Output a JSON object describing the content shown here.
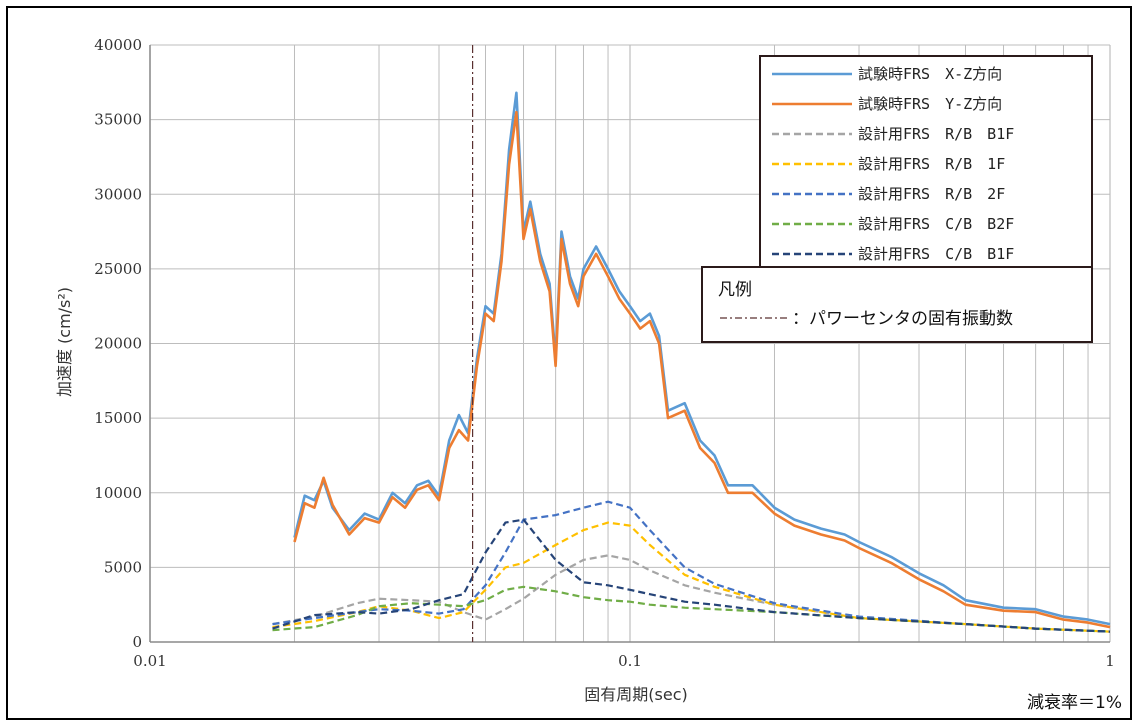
{
  "chart_data": {
    "type": "line",
    "xlabel": "固有周期(sec)",
    "ylabel": "加速度 (cm/s²)",
    "x_scale": "log",
    "xlim": [
      0.01,
      1
    ],
    "ylim": [
      0,
      40000
    ],
    "x_ticks": [
      "0.01",
      "0.1",
      "1"
    ],
    "y_ticks": [
      "0",
      "5000",
      "10000",
      "15000",
      "20000",
      "25000",
      "30000",
      "35000",
      "40000"
    ],
    "grid": true,
    "legend_position": "top-right",
    "damping_note": "減衰率＝1%",
    "vertical_marker": {
      "x": 0.047,
      "legend_title": "凡例",
      "legend_label": "：パワーセンタの固有振動数"
    },
    "series": [
      {
        "name": "試験時FRS　X-Z方向",
        "color": "#5b9bd5",
        "style": "solid",
        "x": [
          0.02,
          0.021,
          0.022,
          0.023,
          0.024,
          0.026,
          0.028,
          0.03,
          0.032,
          0.034,
          0.036,
          0.038,
          0.04,
          0.042,
          0.044,
          0.046,
          0.048,
          0.05,
          0.052,
          0.054,
          0.056,
          0.058,
          0.06,
          0.062,
          0.065,
          0.068,
          0.07,
          0.072,
          0.075,
          0.078,
          0.08,
          0.085,
          0.09,
          0.095,
          0.1,
          0.105,
          0.11,
          0.115,
          0.12,
          0.13,
          0.14,
          0.15,
          0.16,
          0.18,
          0.2,
          0.22,
          0.25,
          0.28,
          0.3,
          0.35,
          0.4,
          0.45,
          0.5,
          0.6,
          0.7,
          0.8,
          0.9,
          1.0
        ],
        "y": [
          7000,
          9800,
          9500,
          10800,
          9000,
          7500,
          8600,
          8200,
          10000,
          9300,
          10500,
          10800,
          9800,
          13500,
          15200,
          14000,
          19000,
          22500,
          22000,
          26000,
          33000,
          36800,
          27500,
          29500,
          26000,
          24000,
          19000,
          27500,
          24500,
          23000,
          25000,
          26500,
          25000,
          23500,
          22500,
          21500,
          22000,
          20500,
          15500,
          16000,
          13500,
          12500,
          10500,
          10500,
          9000,
          8200,
          7600,
          7200,
          6700,
          5700,
          4600,
          3800,
          2800,
          2300,
          2200,
          1700,
          1500,
          1200
        ]
      },
      {
        "name": "試験時FRS　Y-Z方向",
        "color": "#ed7d31",
        "style": "solid",
        "x": [
          0.02,
          0.021,
          0.022,
          0.023,
          0.024,
          0.026,
          0.028,
          0.03,
          0.032,
          0.034,
          0.036,
          0.038,
          0.04,
          0.042,
          0.044,
          0.046,
          0.048,
          0.05,
          0.052,
          0.054,
          0.056,
          0.058,
          0.06,
          0.062,
          0.065,
          0.068,
          0.07,
          0.072,
          0.075,
          0.078,
          0.08,
          0.085,
          0.09,
          0.095,
          0.1,
          0.105,
          0.11,
          0.115,
          0.12,
          0.13,
          0.14,
          0.15,
          0.16,
          0.18,
          0.2,
          0.22,
          0.25,
          0.28,
          0.3,
          0.35,
          0.4,
          0.45,
          0.5,
          0.6,
          0.7,
          0.8,
          0.9,
          1.0
        ],
        "y": [
          6700,
          9300,
          9000,
          11000,
          9200,
          7200,
          8300,
          8000,
          9700,
          9000,
          10200,
          10500,
          9500,
          13000,
          14200,
          13500,
          18500,
          22000,
          21500,
          25500,
          32000,
          35500,
          27000,
          29000,
          25500,
          23500,
          18500,
          27000,
          24000,
          22500,
          24500,
          26000,
          24500,
          23000,
          22000,
          21000,
          21500,
          20000,
          15000,
          15500,
          13000,
          12000,
          10000,
          10000,
          8600,
          7800,
          7200,
          6800,
          6300,
          5300,
          4200,
          3400,
          2500,
          2100,
          2000,
          1500,
          1300,
          1000
        ]
      },
      {
        "name": "設計用FRS　R/B　B1F",
        "color": "#a5a5a5",
        "style": "dashed",
        "x": [
          0.018,
          0.022,
          0.027,
          0.03,
          0.035,
          0.04,
          0.045,
          0.05,
          0.055,
          0.06,
          0.07,
          0.08,
          0.09,
          0.1,
          0.11,
          0.13,
          0.15,
          0.2,
          0.3,
          0.5,
          0.7,
          1.0
        ],
        "y": [
          1200,
          1700,
          2600,
          2900,
          2800,
          2700,
          2000,
          1500,
          2200,
          2900,
          4500,
          5500,
          5800,
          5500,
          4800,
          3800,
          3300,
          2500,
          1600,
          1200,
          900,
          700
        ]
      },
      {
        "name": "設計用FRS　R/B　1F",
        "color": "#ffc000",
        "style": "dashed",
        "x": [
          0.018,
          0.022,
          0.027,
          0.03,
          0.035,
          0.04,
          0.045,
          0.05,
          0.055,
          0.06,
          0.07,
          0.08,
          0.09,
          0.1,
          0.11,
          0.13,
          0.15,
          0.2,
          0.3,
          0.5,
          0.7,
          1.0
        ],
        "y": [
          1000,
          1400,
          2000,
          2400,
          2100,
          1600,
          2000,
          3500,
          5000,
          5300,
          6500,
          7500,
          8000,
          7800,
          6500,
          4500,
          3700,
          2500,
          1600,
          1200,
          900,
          700
        ]
      },
      {
        "name": "設計用FRS　R/B　2F",
        "color": "#4472c4",
        "style": "dashed",
        "x": [
          0.018,
          0.022,
          0.027,
          0.03,
          0.035,
          0.04,
          0.045,
          0.05,
          0.055,
          0.06,
          0.07,
          0.08,
          0.09,
          0.1,
          0.11,
          0.13,
          0.15,
          0.2,
          0.3,
          0.5,
          0.7,
          1.0
        ],
        "y": [
          1200,
          1600,
          2000,
          2200,
          2100,
          1900,
          2200,
          3800,
          6000,
          8200,
          8500,
          9000,
          9400,
          9000,
          7500,
          5000,
          3900,
          2600,
          1700,
          1200,
          900,
          700
        ]
      },
      {
        "name": "設計用FRS　C/B　B2F",
        "color": "#70ad47",
        "style": "dashed",
        "x": [
          0.018,
          0.022,
          0.027,
          0.03,
          0.035,
          0.04,
          0.045,
          0.05,
          0.055,
          0.06,
          0.07,
          0.08,
          0.09,
          0.1,
          0.11,
          0.13,
          0.15,
          0.2,
          0.3,
          0.5,
          0.7,
          1.0
        ],
        "y": [
          800,
          1000,
          1800,
          2400,
          2600,
          2500,
          2400,
          2800,
          3500,
          3700,
          3400,
          3000,
          2800,
          2700,
          2500,
          2300,
          2200,
          2000,
          1600,
          1200,
          900,
          700
        ]
      },
      {
        "name": "設計用FRS　C/B　B1F",
        "color": "#264478",
        "style": "dashed",
        "x": [
          0.018,
          0.022,
          0.027,
          0.03,
          0.035,
          0.04,
          0.045,
          0.05,
          0.055,
          0.06,
          0.07,
          0.08,
          0.09,
          0.1,
          0.11,
          0.13,
          0.15,
          0.2,
          0.3,
          0.5,
          0.7,
          1.0
        ],
        "y": [
          900,
          1800,
          2000,
          1900,
          2200,
          2800,
          3200,
          6000,
          8000,
          8200,
          5500,
          4000,
          3800,
          3500,
          3200,
          2700,
          2500,
          2000,
          1600,
          1200,
          900,
          700
        ]
      }
    ]
  }
}
